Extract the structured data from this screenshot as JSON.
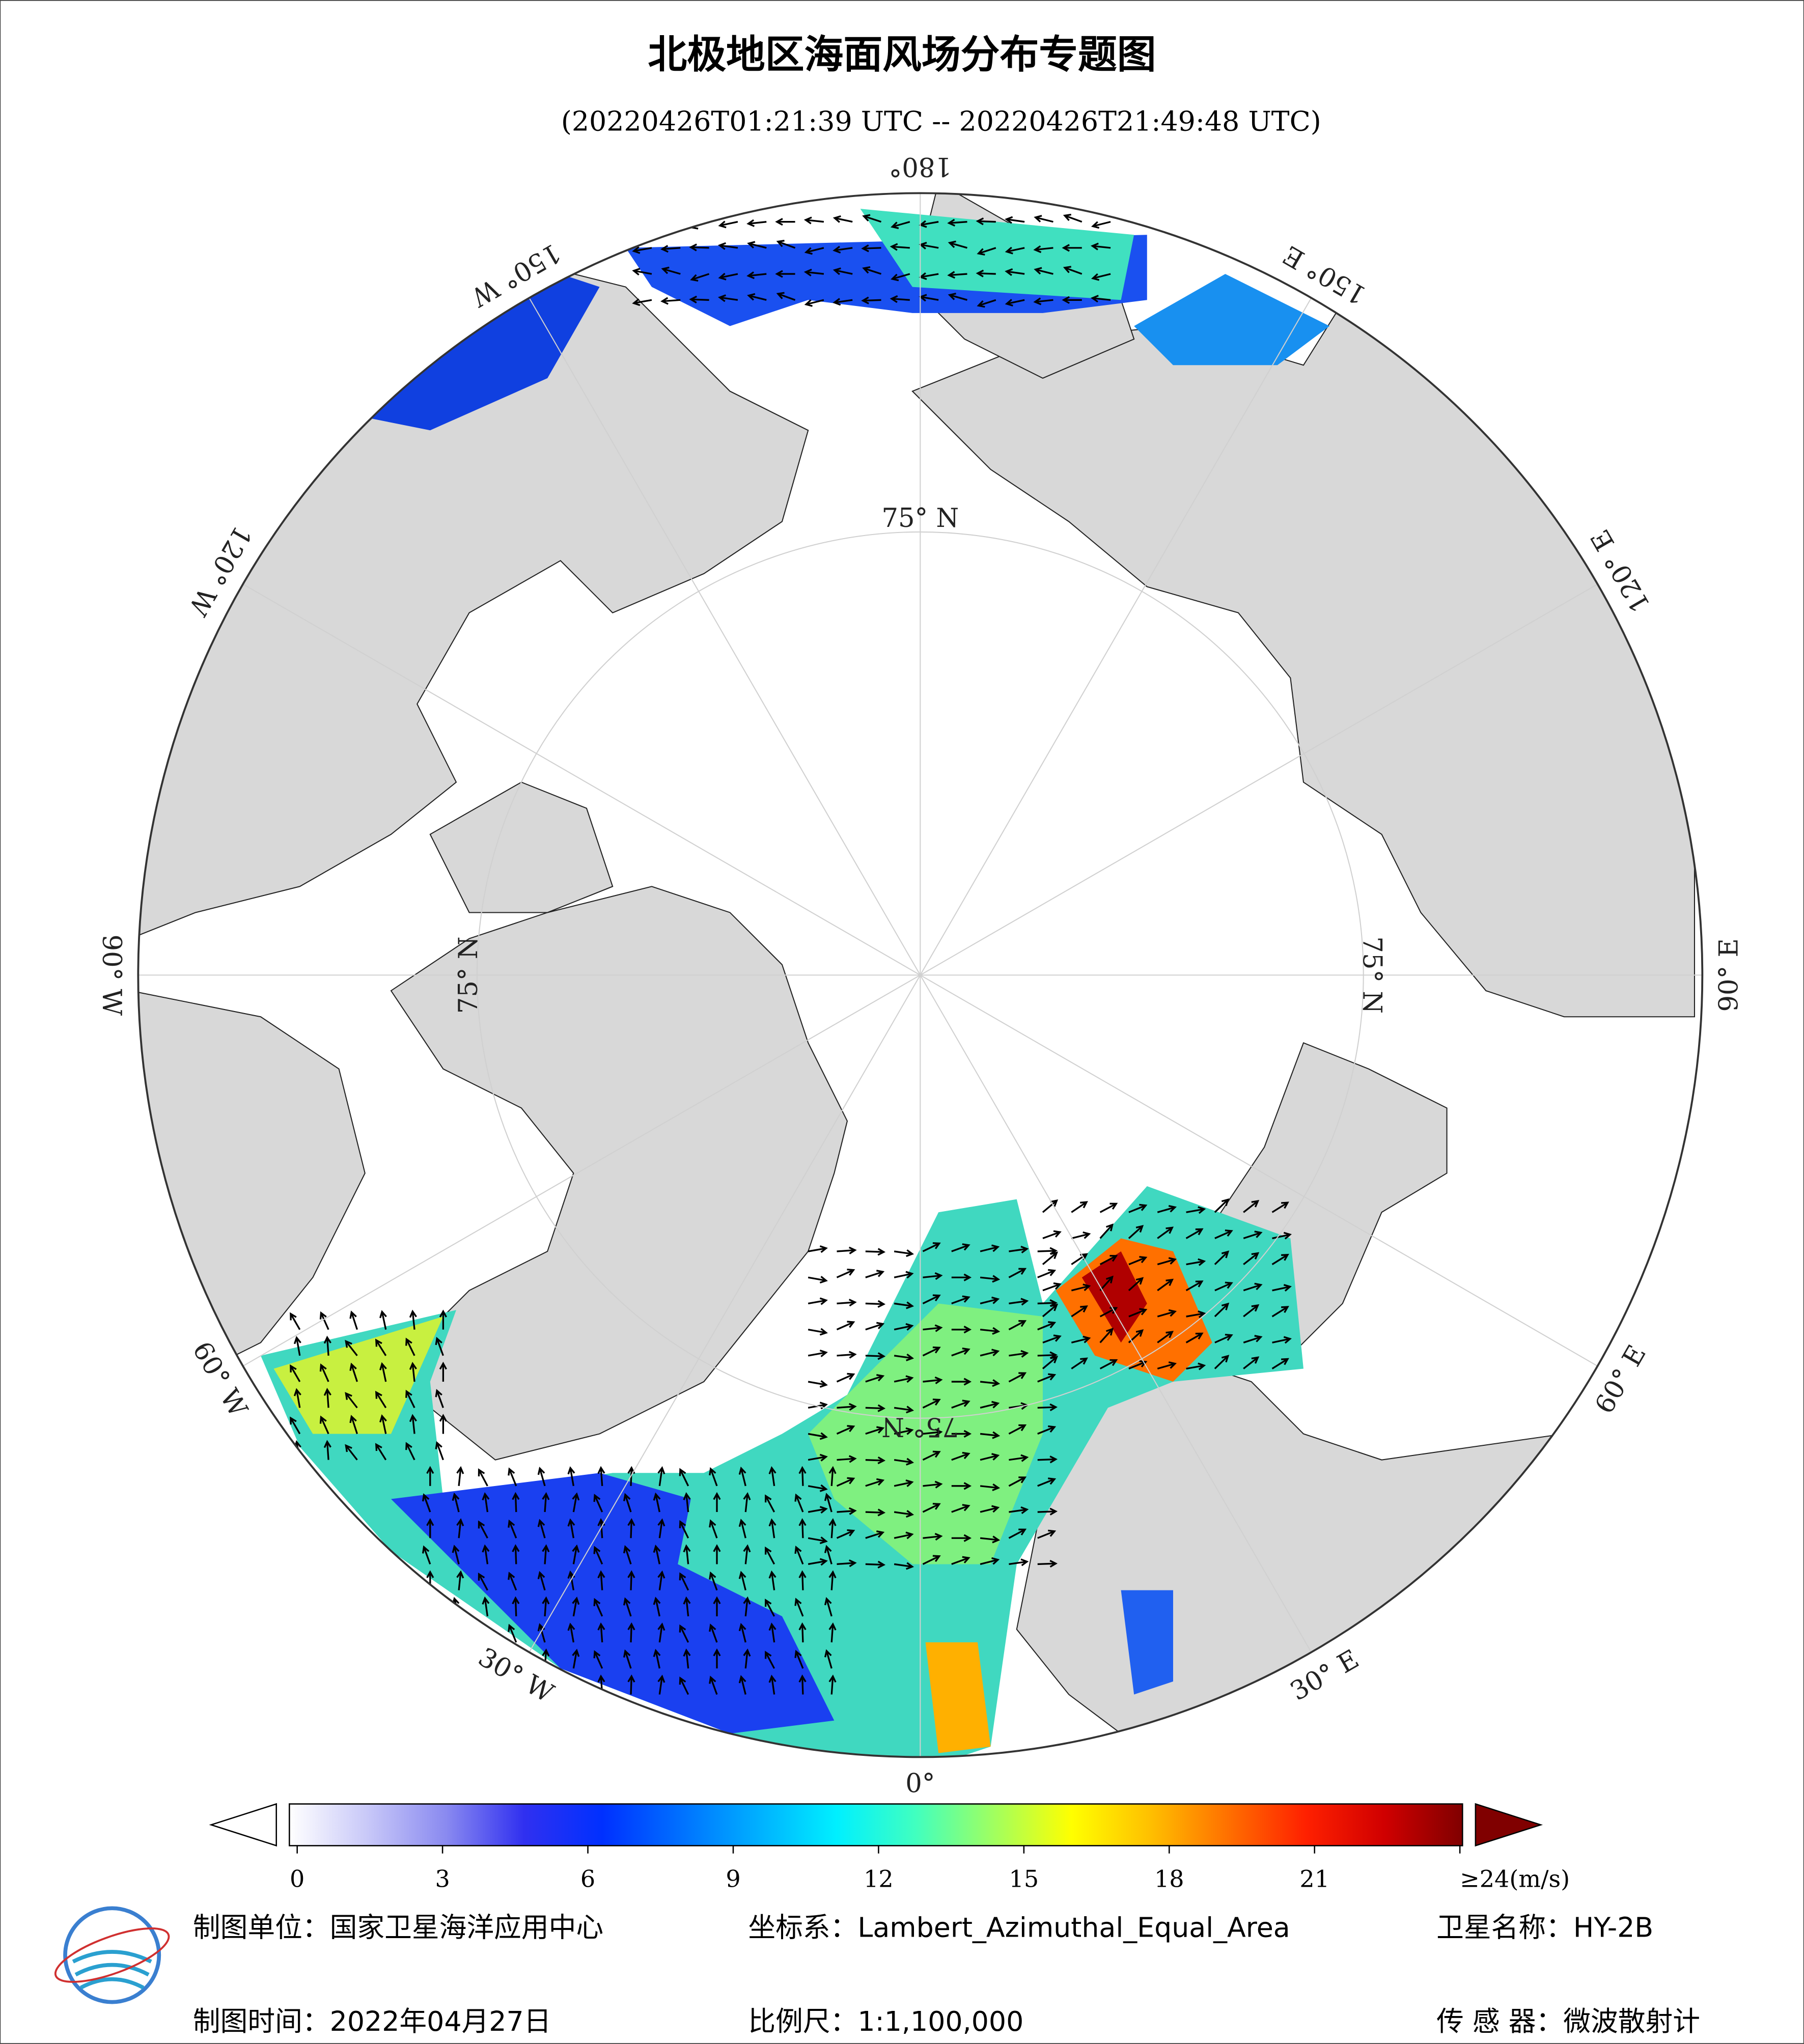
{
  "header": {
    "title": "北极地区海面风场分布专题图",
    "subtitle": "(20220426T01:21:39 UTC -- 20220426T21:49:48 UTC)"
  },
  "map": {
    "projection": "Lambert_Azimuthal_Equal_Area",
    "meridian_labels": [
      "0°",
      "30° E",
      "60° E",
      "90° E",
      "120° E",
      "150° E",
      "180°",
      "150° W",
      "120° W",
      "90° W",
      "60° W",
      "30° W"
    ],
    "parallel_label": "75° N",
    "land_color": "#d8d8d8",
    "ocean_color": "#ffffff"
  },
  "colorbar": {
    "range": [
      0,
      24
    ],
    "ticks": [
      0,
      3,
      6,
      9,
      12,
      15,
      18,
      21,
      {
        "value": 24,
        "label": "≥24(m/s)"
      }
    ],
    "colors": [
      "#ffffff",
      "#c8c8f8",
      "#8a8af0",
      "#3030f0",
      "#0030ff",
      "#0070ff",
      "#00b0ff",
      "#00f0ff",
      "#40ffc0",
      "#a0ff60",
      "#ffff00",
      "#ffc000",
      "#ff7000",
      "#ff2000",
      "#d00000",
      "#800000"
    ]
  },
  "footer": {
    "unit": "制图单位：国家卫星海洋应用中心",
    "crs": "坐标系：Lambert_Azimuthal_Equal_Area",
    "satellite": "卫星名称：HY-2B",
    "date": "制图时间：2022年04月27日",
    "scale": "比例尺：1:1,100,000",
    "sensor": "传 感 器：微波散射计"
  }
}
